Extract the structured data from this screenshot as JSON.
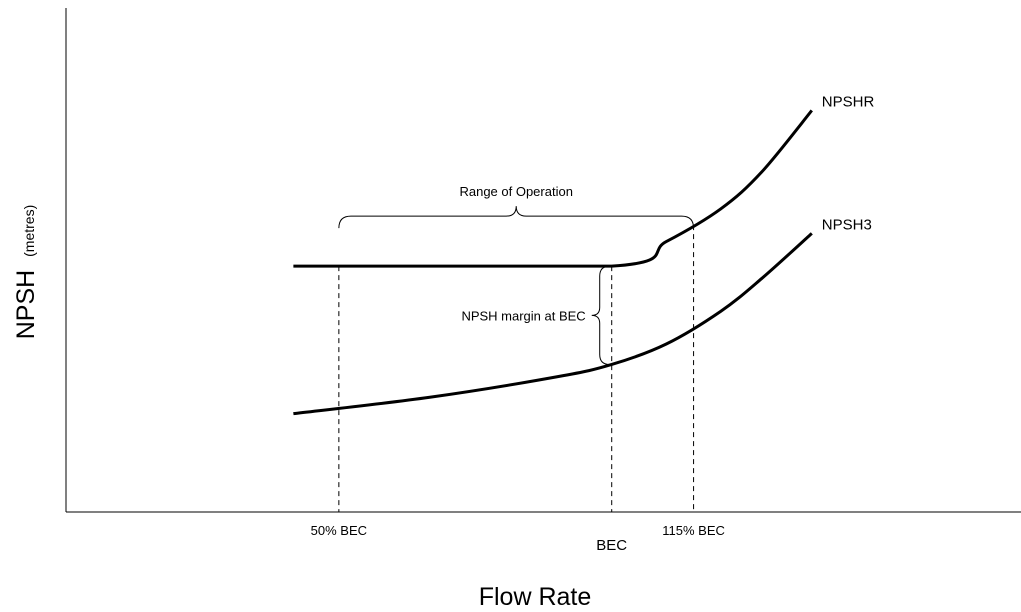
{
  "chart_data": {
    "type": "line",
    "xlabel": "Flow Rate",
    "ylabel": "NPSH",
    "ylabel_unit": "(metres)",
    "series": [
      {
        "name": "NPSHR",
        "points": [
          [
            0,
            52
          ],
          [
            70,
            52
          ],
          [
            82,
            58
          ],
          [
            94,
            66
          ],
          [
            103,
            75
          ],
          [
            114,
            90
          ]
        ]
      },
      {
        "name": "NPSH3",
        "points": [
          [
            0,
            16
          ],
          [
            30,
            20
          ],
          [
            58,
            25
          ],
          [
            70,
            28
          ],
          [
            82,
            33
          ],
          [
            94,
            41
          ],
          [
            103,
            49
          ],
          [
            114,
            60
          ]
        ]
      }
    ],
    "x_ticks": [
      {
        "x": 10,
        "label": "50% BEC"
      },
      {
        "x": 70,
        "label": "BEC"
      },
      {
        "x": 88,
        "label": "115% BEC"
      }
    ],
    "annotations": {
      "range_label": "Range of Operation",
      "margin_label": "NPSH margin at BEC"
    },
    "xlim": [
      -50,
      160
    ],
    "ylim": [
      -8,
      115
    ],
    "grid": false
  }
}
